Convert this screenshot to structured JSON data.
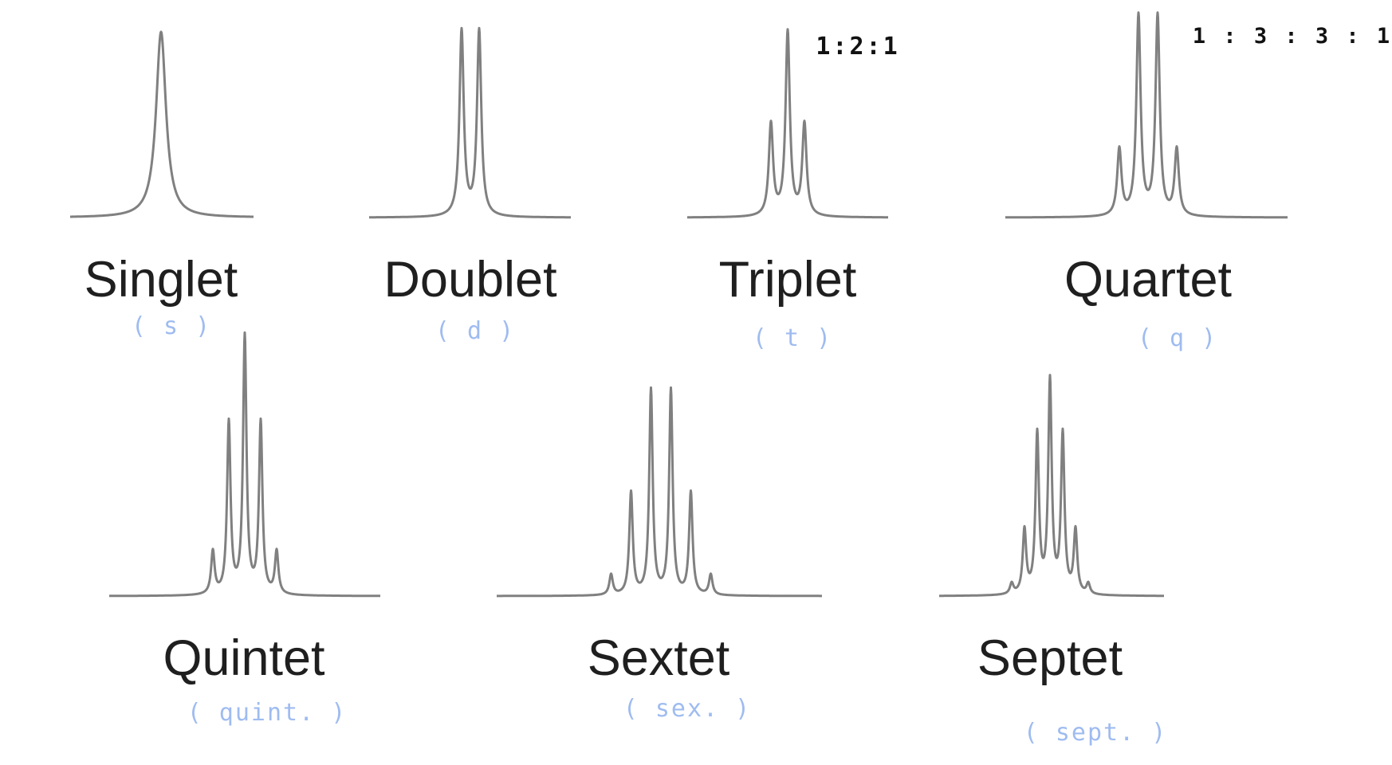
{
  "line_color": "#808080",
  "handwriting_color": "#9fbcf0",
  "multiplets": [
    {
      "name": "Singlet",
      "abbr": "( s )",
      "ratio": "",
      "intensities": [
        1
      ]
    },
    {
      "name": "Doublet",
      "abbr": "( d )",
      "ratio": "",
      "intensities": [
        1,
        1
      ]
    },
    {
      "name": "Triplet",
      "abbr": "( t )",
      "ratio": "1:2:1",
      "intensities": [
        1,
        2,
        1
      ]
    },
    {
      "name": "Quartet",
      "abbr": "( q )",
      "ratio": "1 : 3 : 3 : 1",
      "intensities": [
        1,
        3,
        3,
        1
      ]
    },
    {
      "name": "Quintet",
      "abbr": "( quint. )",
      "ratio": "",
      "intensities": [
        1,
        4,
        6,
        4,
        1
      ]
    },
    {
      "name": "Sextet",
      "abbr": "( sex. )",
      "ratio": "",
      "intensities": [
        1,
        5,
        10,
        10,
        5,
        1
      ]
    },
    {
      "name": "Septet",
      "abbr": "( sept. )",
      "ratio": "",
      "intensities": [
        1,
        6,
        15,
        20,
        15,
        6,
        1
      ]
    }
  ]
}
